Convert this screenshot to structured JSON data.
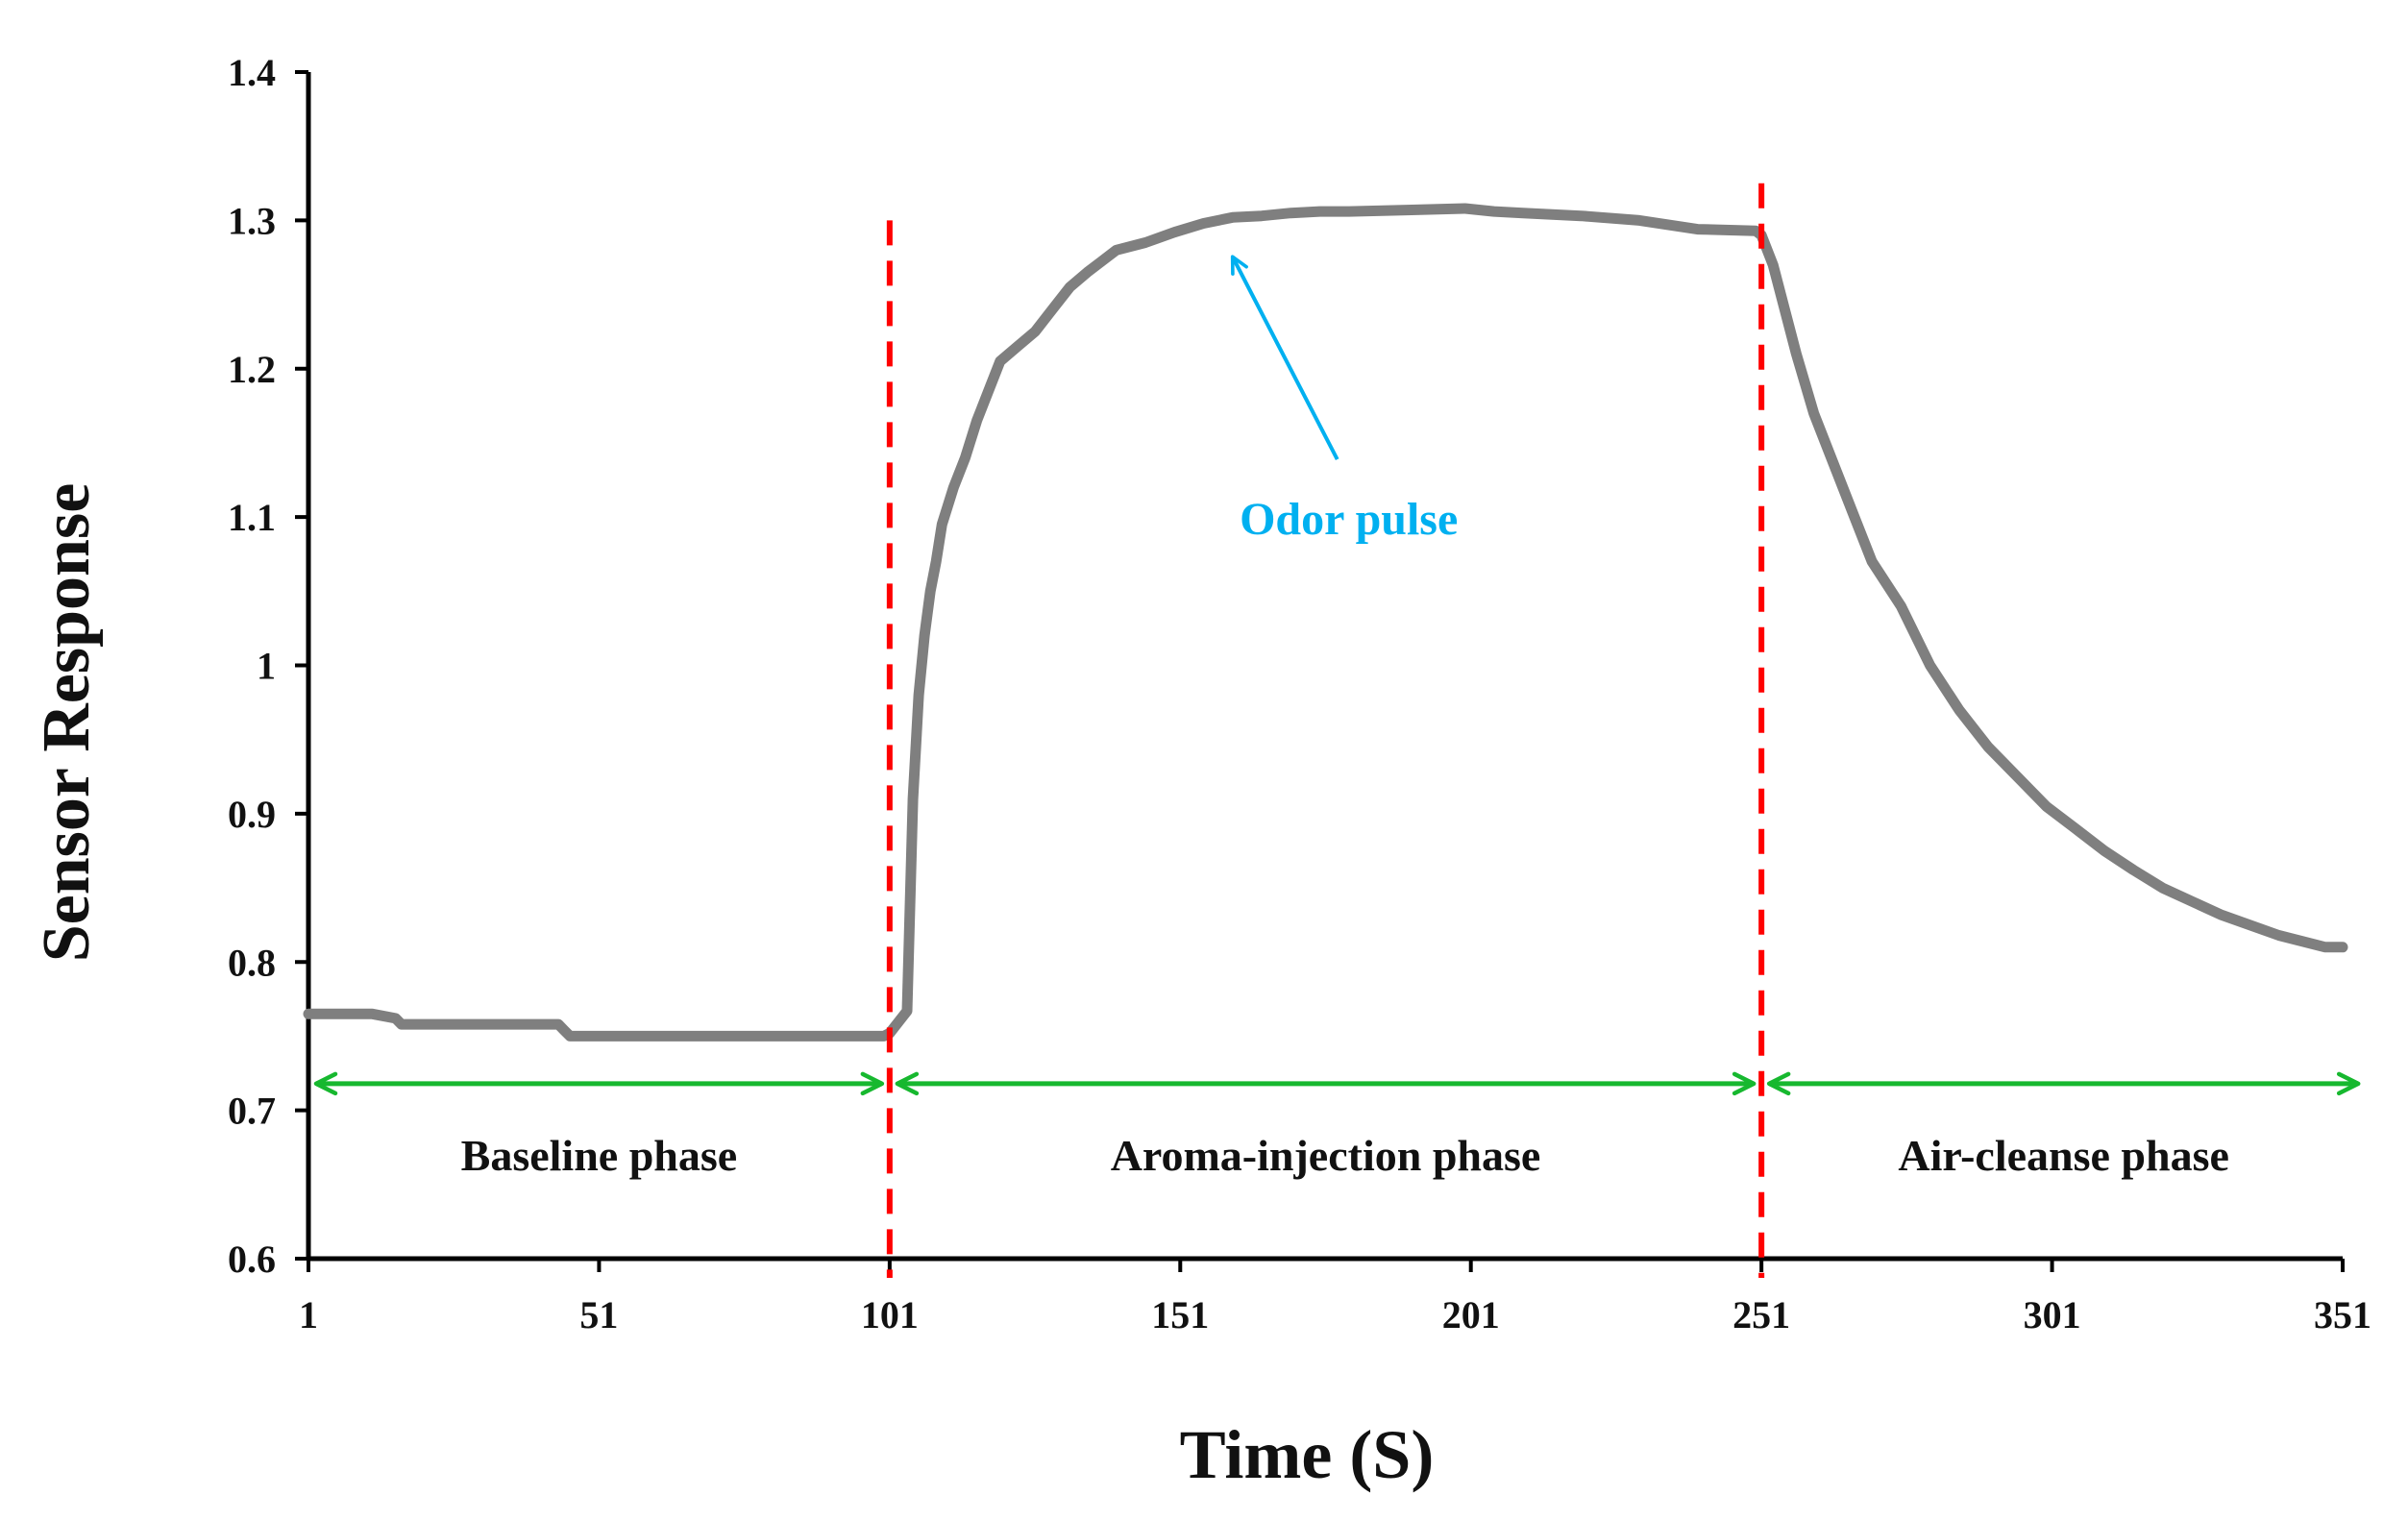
{
  "chart_data": {
    "type": "line",
    "title": "",
    "xlabel": "Time (S)",
    "ylabel": "Sensor Response",
    "xlim": [
      1,
      351
    ],
    "ylim": [
      0.6,
      1.4
    ],
    "x_ticks": [
      1,
      51,
      101,
      151,
      201,
      251,
      301,
      351
    ],
    "x_tick_labels": [
      "1",
      "51",
      "101",
      "151",
      "201",
      "251",
      "301",
      "351"
    ],
    "y_ticks": [
      0.6,
      0.7,
      0.8,
      0.9,
      1.0,
      1.1,
      1.2,
      1.3,
      1.4
    ],
    "y_tick_labels": [
      "0.6",
      "0.7",
      "0.8",
      "0.9",
      "1",
      "1.1",
      "1.2",
      "1.3",
      "1.4"
    ],
    "grid": false,
    "legend": "none",
    "series": [
      {
        "name": "Sensor Response",
        "color": "#7f7f7f",
        "x": [
          1,
          12,
          16,
          17,
          30,
          44,
          45,
          46,
          60,
          80,
          100,
          101,
          103,
          104,
          105,
          106,
          107,
          108,
          109,
          110,
          112,
          114,
          116,
          118,
          120,
          123,
          126,
          129,
          132,
          135,
          140,
          145,
          150,
          155,
          160,
          165,
          170,
          175,
          180,
          190,
          200,
          205,
          210,
          220,
          230,
          240,
          250,
          251,
          253,
          255,
          257,
          260,
          263,
          267,
          270,
          275,
          280,
          285,
          290,
          295,
          300,
          305,
          310,
          315,
          320,
          330,
          340,
          348,
          351
        ],
        "y": [
          0.765,
          0.765,
          0.762,
          0.758,
          0.758,
          0.758,
          0.754,
          0.75,
          0.75,
          0.75,
          0.75,
          0.752,
          0.762,
          0.767,
          0.91,
          0.98,
          1.02,
          1.05,
          1.07,
          1.095,
          1.12,
          1.14,
          1.165,
          1.185,
          1.205,
          1.215,
          1.225,
          1.24,
          1.255,
          1.265,
          1.28,
          1.285,
          1.292,
          1.298,
          1.302,
          1.303,
          1.305,
          1.306,
          1.306,
          1.307,
          1.308,
          1.306,
          1.305,
          1.303,
          1.3,
          1.294,
          1.293,
          1.29,
          1.27,
          1.24,
          1.21,
          1.17,
          1.14,
          1.1,
          1.07,
          1.04,
          1.0,
          0.97,
          0.945,
          0.925,
          0.905,
          0.89,
          0.875,
          0.862,
          0.85,
          0.832,
          0.818,
          0.81,
          0.81
        ]
      }
    ],
    "phase_boundaries": [
      101,
      251
    ],
    "phase_boundary_color": "#ff0000",
    "phase_arrow_y": 0.718,
    "phase_arrow_color": "#17b82f",
    "phases": [
      {
        "label": "Baseline phase",
        "x_start": 1,
        "x_end": 101
      },
      {
        "label": "Aroma-injection phase",
        "x_start": 101,
        "x_end": 251
      },
      {
        "label": "Air-cleanse phase",
        "x_start": 251,
        "x_end": 355
      }
    ],
    "annotation": {
      "label": "Odor pulse",
      "color": "#00b0f0",
      "point_x": 159,
      "point_y": 1.282,
      "text_x": 180,
      "text_y": 1.1
    }
  }
}
